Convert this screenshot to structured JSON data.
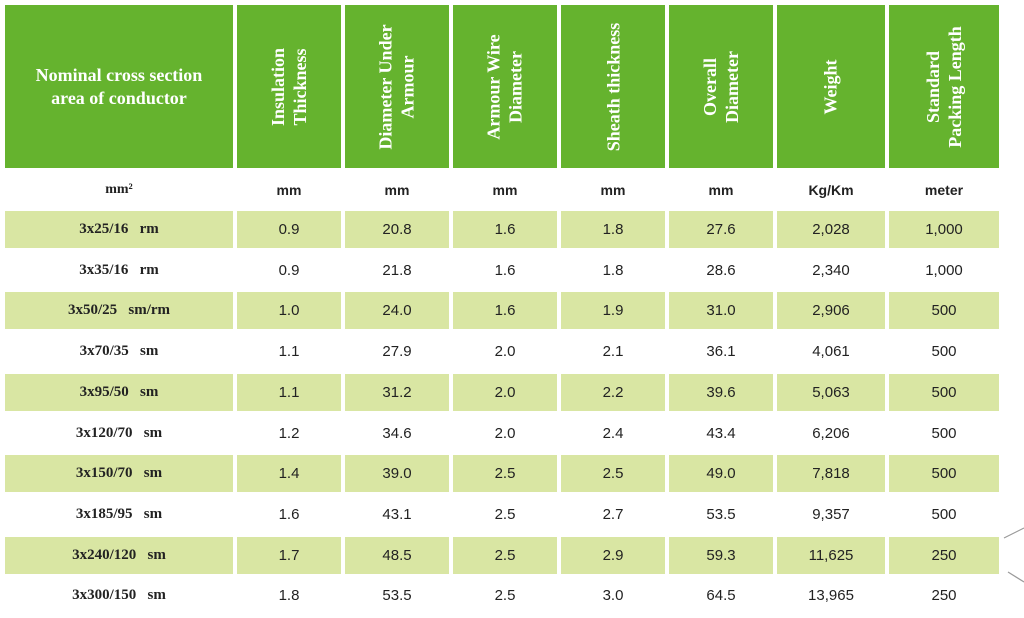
{
  "table": {
    "headers": [
      "Nominal cross section\narea of conductor",
      "Insulation\nThickness",
      "Diameter Under\nArmour",
      "Armour Wire\nDiameter",
      "Sheath thickness",
      "Overall\nDiameter",
      "Weight",
      "Standard\nPacking Length"
    ],
    "units": [
      "mm²",
      "mm",
      "mm",
      "mm",
      "mm",
      "mm",
      "Kg/Km",
      "meter"
    ],
    "rows": [
      [
        "3x25/16   rm",
        "0.9",
        "20.8",
        "1.6",
        "1.8",
        "27.6",
        "2,028",
        "1,000"
      ],
      [
        "3x35/16   rm",
        "0.9",
        "21.8",
        "1.6",
        "1.8",
        "28.6",
        "2,340",
        "1,000"
      ],
      [
        "3x50/25   sm/rm",
        "1.0",
        "24.0",
        "1.6",
        "1.9",
        "31.0",
        "2,906",
        "500"
      ],
      [
        "3x70/35   sm",
        "1.1",
        "27.9",
        "2.0",
        "2.1",
        "36.1",
        "4,061",
        "500"
      ],
      [
        "3x95/50   sm",
        "1.1",
        "31.2",
        "2.0",
        "2.2",
        "39.6",
        "5,063",
        "500"
      ],
      [
        "3x120/70   sm",
        "1.2",
        "34.6",
        "2.0",
        "2.4",
        "43.4",
        "6,206",
        "500"
      ],
      [
        "3x150/70   sm",
        "1.4",
        "39.0",
        "2.5",
        "2.5",
        "49.0",
        "7,818",
        "500"
      ],
      [
        "3x185/95   sm",
        "1.6",
        "43.1",
        "2.5",
        "2.7",
        "53.5",
        "9,357",
        "500"
      ],
      [
        "3x240/120   sm",
        "1.7",
        "48.5",
        "2.5",
        "2.9",
        "59.3",
        "11,625",
        "250"
      ],
      [
        "3x300/150   sm",
        "1.8",
        "53.5",
        "2.5",
        "3.0",
        "64.5",
        "13,965",
        "250"
      ]
    ]
  },
  "colors": {
    "header_green": "#65b32e",
    "row_green": "#d9e6a3",
    "header_text": "#ffffff",
    "body_text": "#222222"
  }
}
